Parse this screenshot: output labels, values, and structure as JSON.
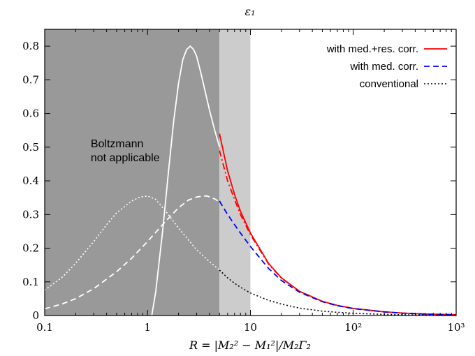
{
  "chart_data": {
    "type": "line",
    "title": "ε₁",
    "xlabel": "R = |M₂² − M₁²|/M₂Γ₂",
    "ylabel": "",
    "xscale": "log",
    "xlim": [
      0.1,
      1000
    ],
    "ylim": [
      0,
      0.85
    ],
    "x_ticks": [
      "0.1",
      "1",
      "10",
      "10²",
      "10³"
    ],
    "y_ticks": [
      "0",
      "0.1",
      "0.2",
      "0.3",
      "0.4",
      "0.5",
      "0.6",
      "0.7",
      "0.8"
    ],
    "grid": false,
    "legend_position": "top-right",
    "regions": [
      {
        "x_from": 0.1,
        "x_to": 5,
        "color": "#999999",
        "label": "Boltzmann\nnot applicable"
      },
      {
        "x_from": 5,
        "x_to": 10,
        "color": "#cccccc"
      }
    ],
    "series": [
      {
        "name": "with med.+res. corr.",
        "color": "#ff0000",
        "dash": "solid",
        "x": [
          5,
          6,
          7,
          8,
          10,
          15,
          20,
          30,
          50,
          70,
          100,
          200,
          300,
          500,
          1000
        ],
        "y": [
          0.54,
          0.43,
          0.36,
          0.31,
          0.245,
          0.155,
          0.112,
          0.072,
          0.042,
          0.03,
          0.021,
          0.011,
          0.0072,
          0.0043,
          0.0022
        ]
      },
      {
        "name": "",
        "color": "#ff0000",
        "dash": "dashdot",
        "x": [
          5,
          6,
          7,
          8,
          10,
          15,
          20,
          30,
          50,
          70,
          100,
          200,
          300,
          500,
          1000
        ],
        "y": [
          0.49,
          0.4,
          0.345,
          0.3,
          0.24,
          0.153,
          0.111,
          0.072,
          0.042,
          0.03,
          0.021,
          0.011,
          0.0072,
          0.0043,
          0.0022
        ]
      },
      {
        "name": "with med. corr.",
        "color": "#0000ff",
        "dash": "dashed",
        "x": [
          5,
          6,
          7,
          8,
          10,
          15,
          20,
          30,
          50,
          70,
          100,
          200,
          300,
          500,
          1000
        ],
        "y": [
          0.34,
          0.3,
          0.27,
          0.245,
          0.205,
          0.14,
          0.104,
          0.069,
          0.041,
          0.029,
          0.0205,
          0.0105,
          0.007,
          0.0042,
          0.0021
        ]
      },
      {
        "name": "conventional",
        "color": "#000000",
        "dash": "dotted",
        "x": [
          5,
          6,
          7,
          8,
          10,
          15,
          20,
          30,
          50,
          70,
          100,
          200,
          300,
          500,
          1000
        ],
        "y": [
          0.135,
          0.112,
          0.096,
          0.084,
          0.067,
          0.045,
          0.034,
          0.022,
          0.013,
          0.0095,
          0.0067,
          0.0033,
          0.0022,
          0.0013,
          0.0007
        ]
      },
      {
        "name": "",
        "color": "#ffffff",
        "dash": "solid",
        "x": [
          1.1,
          1.2,
          1.4,
          1.6,
          1.8,
          2.0,
          2.2,
          2.4,
          2.6,
          2.8,
          3.0,
          3.3,
          3.6,
          4.0,
          4.5,
          5.0
        ],
        "y": [
          0.0,
          0.07,
          0.25,
          0.43,
          0.58,
          0.69,
          0.76,
          0.79,
          0.8,
          0.79,
          0.77,
          0.72,
          0.67,
          0.61,
          0.55,
          0.5
        ]
      },
      {
        "name": "",
        "color": "#ffffff",
        "dash": "dashed",
        "x": [
          0.1,
          0.15,
          0.2,
          0.3,
          0.5,
          0.7,
          1.0,
          1.5,
          2.0,
          2.5,
          3.0,
          3.5,
          3.8,
          4.2,
          4.6,
          5.0
        ],
        "y": [
          0.02,
          0.035,
          0.05,
          0.08,
          0.13,
          0.17,
          0.22,
          0.28,
          0.32,
          0.343,
          0.352,
          0.355,
          0.355,
          0.35,
          0.345,
          0.335
        ]
      },
      {
        "name": "",
        "color": "#ffffff",
        "dash": "dotted",
        "x": [
          0.1,
          0.15,
          0.2,
          0.3,
          0.4,
          0.5,
          0.7,
          0.85,
          1.0,
          1.2,
          1.5,
          2.0,
          3.0,
          4.0,
          5.0
        ],
        "y": [
          0.075,
          0.115,
          0.155,
          0.22,
          0.27,
          0.305,
          0.34,
          0.352,
          0.355,
          0.345,
          0.31,
          0.26,
          0.195,
          0.16,
          0.135
        ]
      }
    ]
  }
}
